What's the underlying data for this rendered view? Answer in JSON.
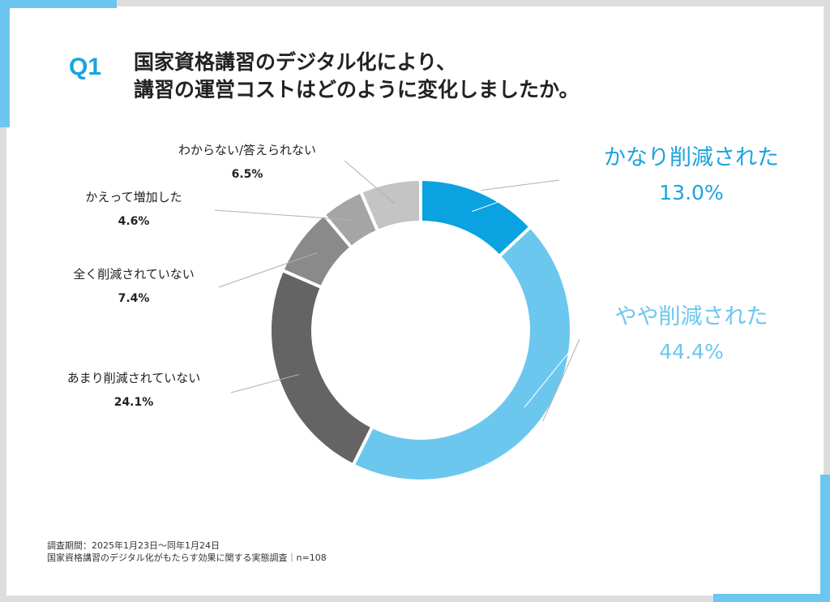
{
  "header": {
    "question_no": "Q1",
    "title_line1": "国家資格講習のデジタル化により、",
    "title_line2": "講習の運営コストはどのように変化しましたか。"
  },
  "chart_data": {
    "type": "pie",
    "variant": "donut",
    "slices": [
      {
        "label": "かなり削減された",
        "value": 13.0,
        "value_label": "13.0%",
        "color": "#0aa2e0"
      },
      {
        "label": "やや削減された",
        "value": 44.4,
        "value_label": "44.4%",
        "color": "#6cc7ef"
      },
      {
        "label": "あまり削減されていない",
        "value": 24.1,
        "value_label": "24.1%",
        "color": "#646464"
      },
      {
        "label": "全く削減されていない",
        "value": 7.4,
        "value_label": "7.4%",
        "color": "#8a8a8a"
      },
      {
        "label": "かえって増加した",
        "value": 4.6,
        "value_label": "4.6%",
        "color": "#a5a5a5"
      },
      {
        "label": "わからない/答えられない",
        "value": 6.5,
        "value_label": "6.5%",
        "color": "#c4c4c4"
      }
    ],
    "legend": "none"
  },
  "footnote": {
    "line1": "調査期間：2025年1月23日～同年1月24日",
    "line2": "国家資格講習のデジタル化がもたらす効果に関する実態調査｜n=108"
  }
}
